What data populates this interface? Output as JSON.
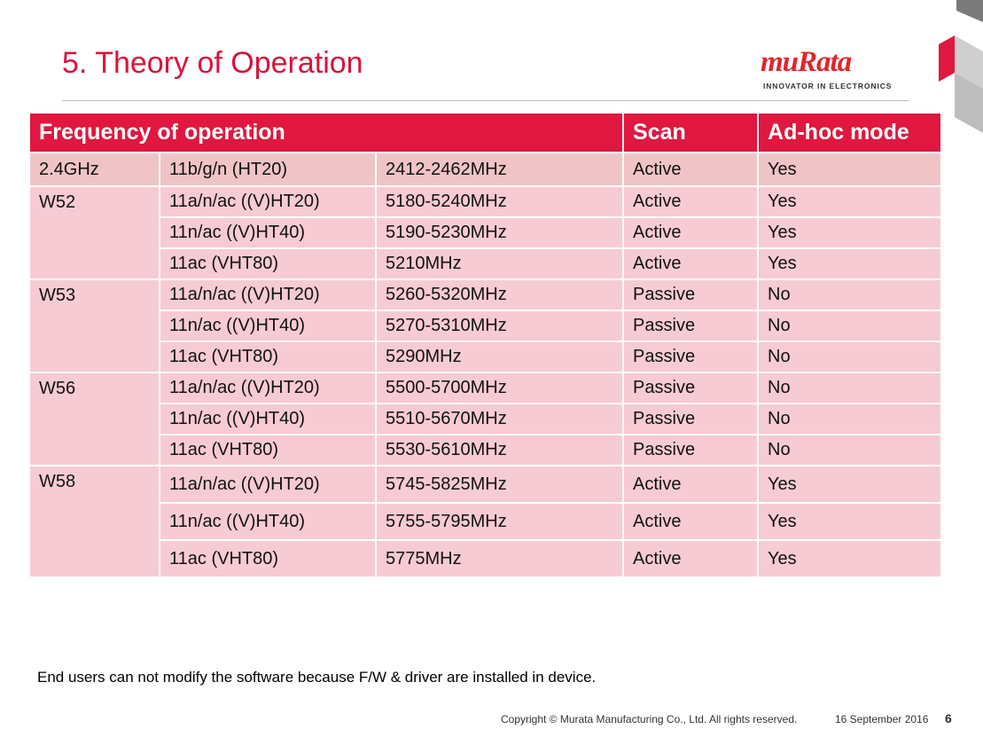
{
  "slide": {
    "title": "5. Theory of Operation",
    "logo": {
      "word": "muRata",
      "tagline": "INNOVATOR IN ELECTRONICS"
    }
  },
  "table": {
    "headers": {
      "frequency": "Frequency of operation",
      "scan": "Scan",
      "adhoc": "Ad-hoc mode"
    },
    "groups": [
      {
        "band": "2.4GHz",
        "rows": [
          {
            "mode": "11b/g/n (HT20)",
            "freq": "2412-2462MHz",
            "scan": "Active",
            "adhoc": "Yes"
          }
        ]
      },
      {
        "band": "W52",
        "rows": [
          {
            "mode": "11a/n/ac ((V)HT20)",
            "freq": "5180-5240MHz",
            "scan": "Active",
            "adhoc": "Yes"
          },
          {
            "mode": "11n/ac ((V)HT40)",
            "freq": "5190-5230MHz",
            "scan": "Active",
            "adhoc": "Yes"
          },
          {
            "mode": "11ac (VHT80)",
            "freq": "5210MHz",
            "scan": "Active",
            "adhoc": "Yes"
          }
        ]
      },
      {
        "band": "W53",
        "rows": [
          {
            "mode": "11a/n/ac ((V)HT20)",
            "freq": "5260-5320MHz",
            "scan": "Passive",
            "adhoc": "No"
          },
          {
            "mode": "11n/ac ((V)HT40)",
            "freq": "5270-5310MHz",
            "scan": "Passive",
            "adhoc": "No"
          },
          {
            "mode": "11ac (VHT80)",
            "freq": "5290MHz",
            "scan": "Passive",
            "adhoc": "No"
          }
        ]
      },
      {
        "band": "W56",
        "rows": [
          {
            "mode": "11a/n/ac ((V)HT20)",
            "freq": "5500-5700MHz",
            "scan": "Passive",
            "adhoc": "No"
          },
          {
            "mode": "11n/ac ((V)HT40)",
            "freq": "5510-5670MHz",
            "scan": "Passive",
            "adhoc": "No"
          },
          {
            "mode": "11ac (VHT80)",
            "freq": "5530-5610MHz",
            "scan": "Passive",
            "adhoc": "No"
          }
        ]
      },
      {
        "band": "W58",
        "rows": [
          {
            "mode": "11a/n/ac ((V)HT20)",
            "freq": "5745-5825MHz",
            "scan": "Active",
            "adhoc": "Yes"
          },
          {
            "mode": "11n/ac ((V)HT40)",
            "freq": "5755-5795MHz",
            "scan": "Active",
            "adhoc": "Yes"
          },
          {
            "mode": "11ac (VHT80)",
            "freq": "5775MHz",
            "scan": "Active",
            "adhoc": "Yes"
          }
        ]
      }
    ]
  },
  "note": "End users can not modify the software because F/W & driver are installed in device.",
  "footer": {
    "copyright": "Copyright © Murata Manufacturing Co., Ltd. All rights reserved.",
    "date": "16 September 2016",
    "page": "6"
  },
  "colors": {
    "brand_red": "#e0173f",
    "row_pink": "#f7cbd3"
  }
}
